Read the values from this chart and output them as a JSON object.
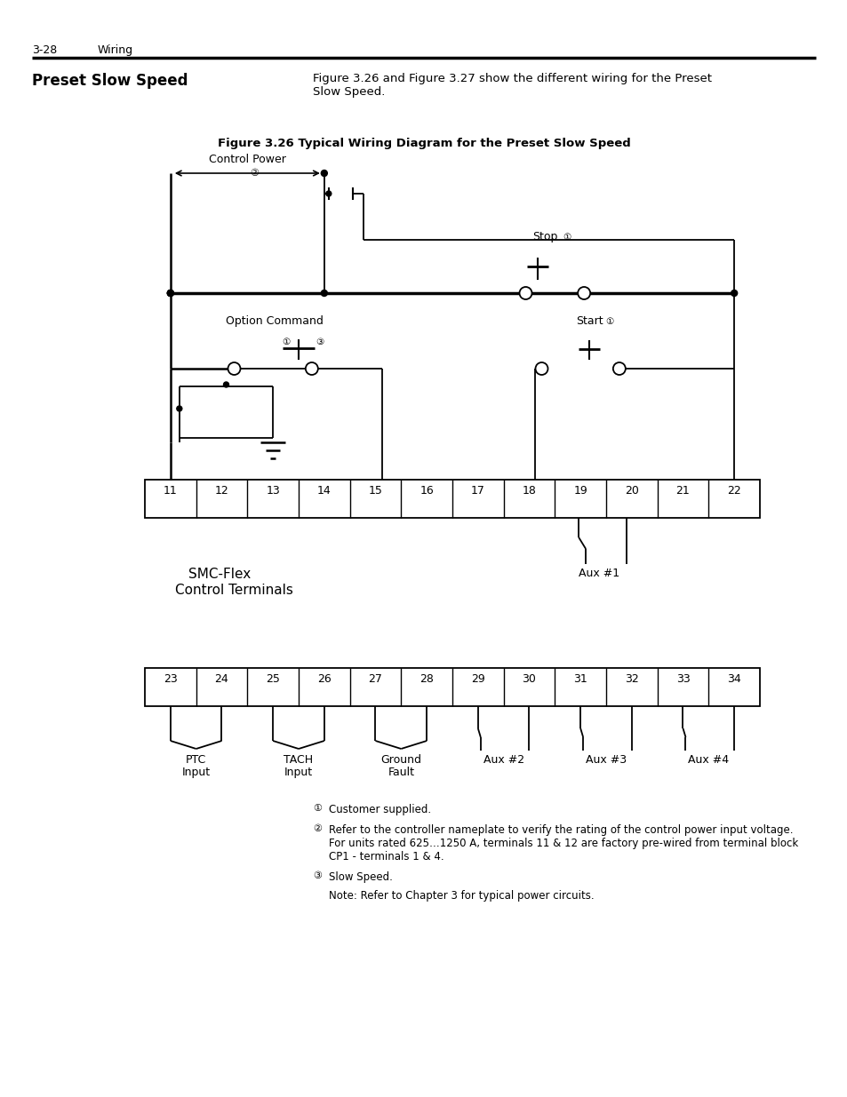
{
  "page_num": "3-28",
  "page_label": "Wiring",
  "section_title": "Preset Slow Speed",
  "section_text": "Figure 3.26 and Figure 3.27 show the different wiring for the Preset\nSlow Speed.",
  "figure_title": "Figure 3.26 Typical Wiring Diagram for the Preset Slow Speed",
  "terminals_row1": [
    "11",
    "12",
    "13",
    "14",
    "15",
    "16",
    "17",
    "18",
    "19",
    "20",
    "21",
    "22"
  ],
  "terminals_row2": [
    "23",
    "24",
    "25",
    "26",
    "27",
    "28",
    "29",
    "30",
    "31",
    "32",
    "33",
    "34"
  ],
  "label_smc_line1": "SMC-Flex",
  "label_smc_line2": "Control Terminals",
  "label_aux1": "Aux #1",
  "label_ptc_line1": "PTC",
  "label_ptc_line2": "Input",
  "label_tach_line1": "TACH",
  "label_tach_line2": "Input",
  "label_ground_line1": "Ground",
  "label_ground_line2": "Fault",
  "label_aux2": "Aux #2",
  "label_aux3": "Aux #3",
  "label_aux4": "Aux #4",
  "label_stop": "Stop",
  "label_start": "Start",
  "label_ctrl_power_line1": "Control Power",
  "label_ctrl_power_line2": "②",
  "label_option_cmd": "Option Command",
  "note1_text": "Customer supplied.",
  "note2_text": "Refer to the controller nameplate to verify the rating of the control power input voltage.\nFor units rated 625…1250 A, terminals 11 & 12 are factory pre-wired from terminal block\nCP1 - terminals 1 & 4.",
  "note3_text": "Slow Speed.",
  "note_final": "Note: Refer to Chapter 3 for typical power circuits.",
  "bg_color": "#ffffff"
}
